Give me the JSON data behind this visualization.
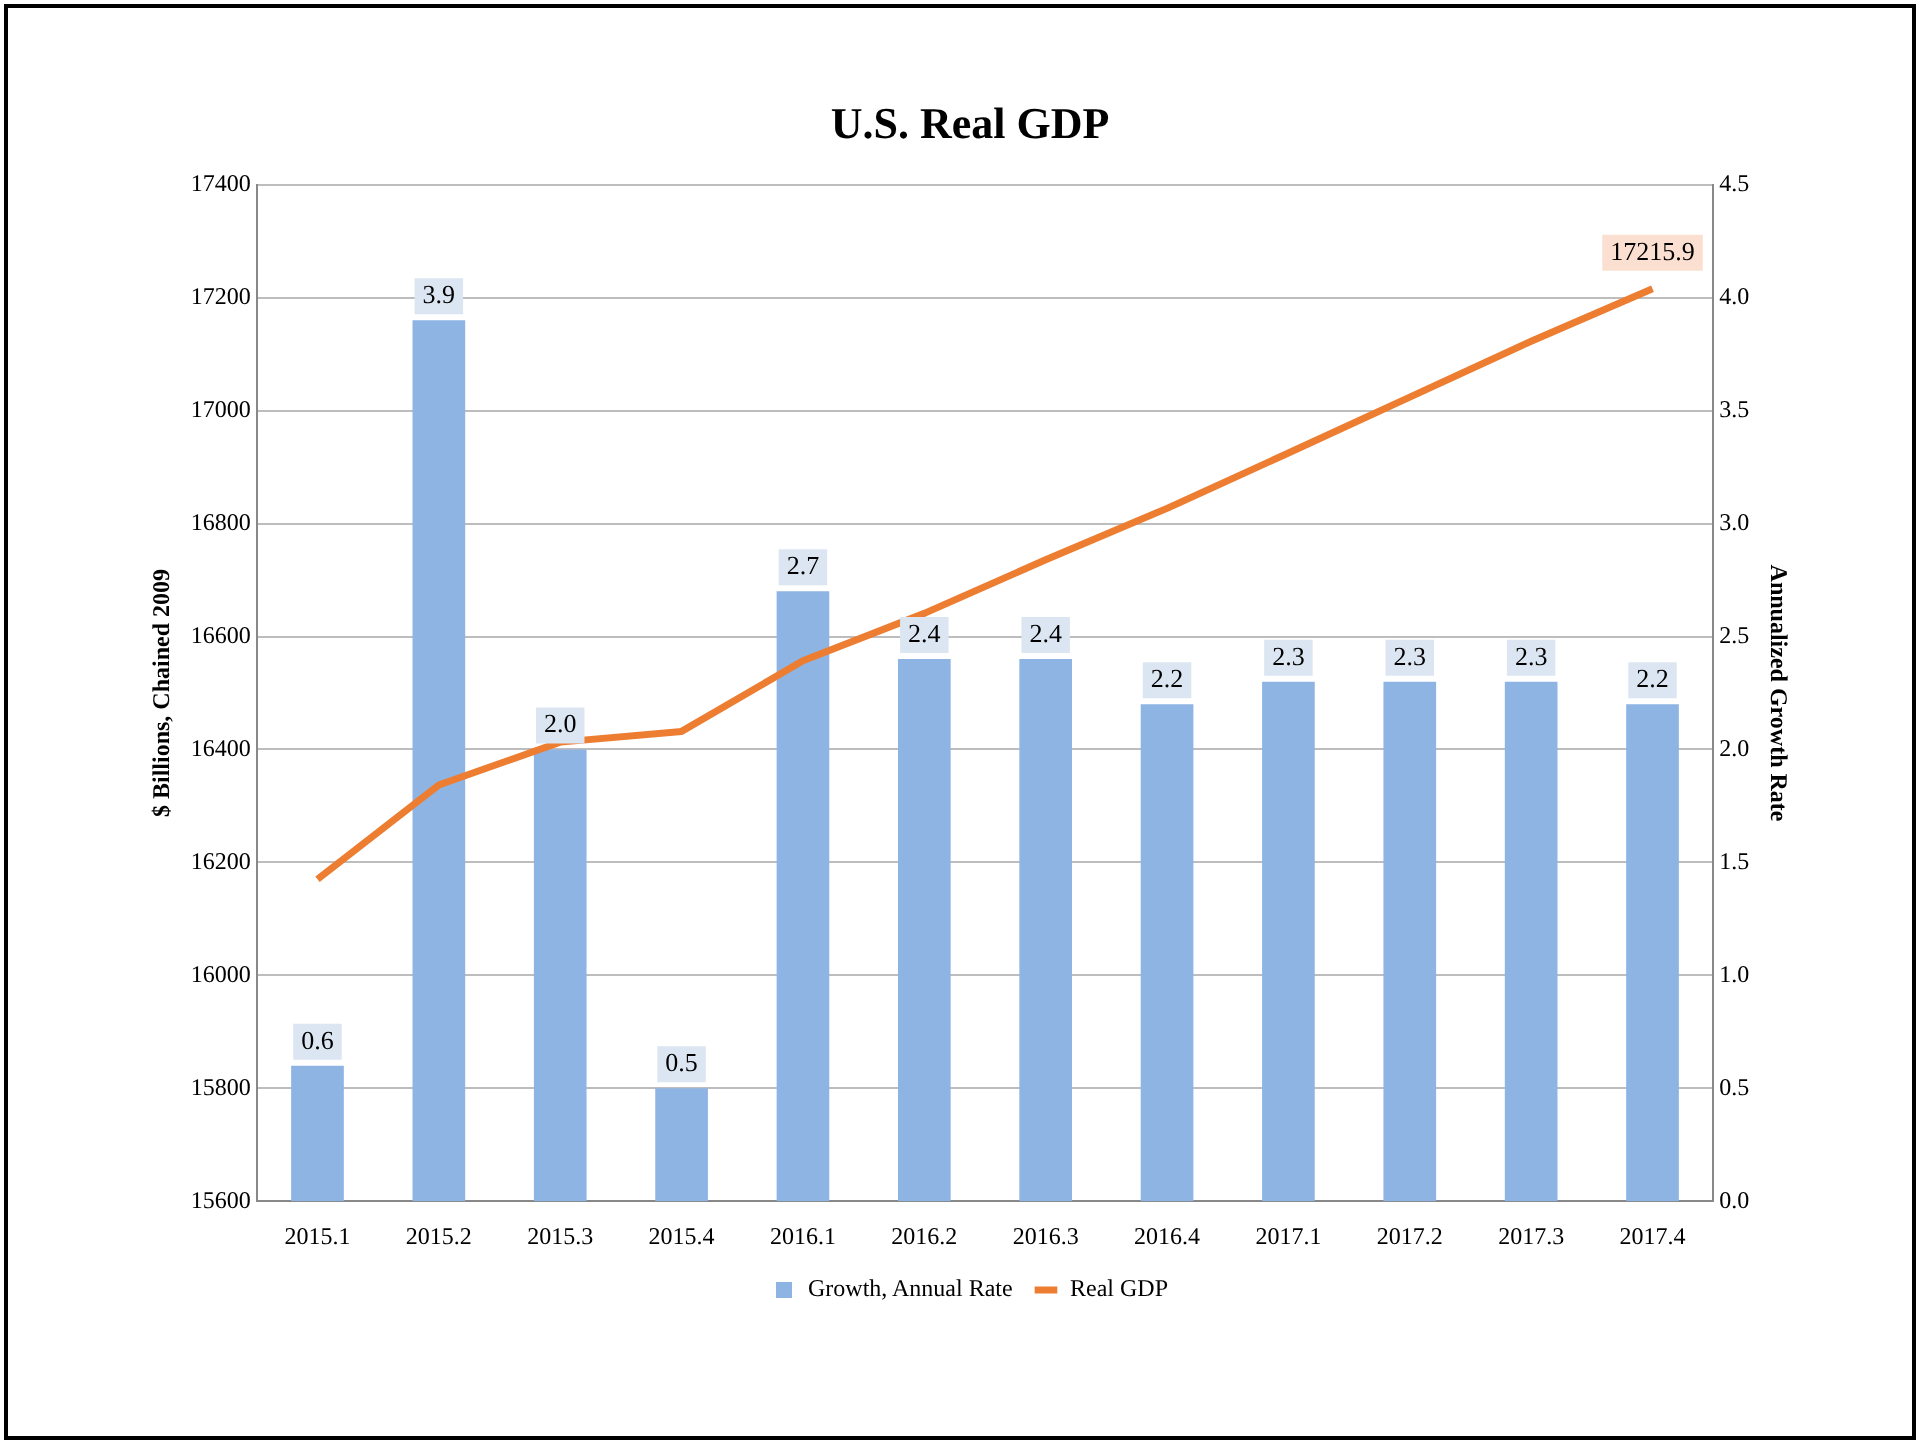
{
  "chart_data": {
    "type": "bar",
    "title": "U.S. Real GDP",
    "ylabel": "$ Billions, Chained 2009",
    "y2label": "Annualized Growth Rate",
    "categories": [
      "2015.1",
      "2015.2",
      "2015.3",
      "2015.4",
      "2016.1",
      "2016.2",
      "2016.3",
      "2016.4",
      "2017.1",
      "2017.2",
      "2017.3",
      "2017.4"
    ],
    "series": [
      {
        "name": "Growth, Annual Rate",
        "axis": "y2",
        "color": "#8eb4e3",
        "values": [
          0.6,
          3.9,
          2.0,
          0.5,
          2.7,
          2.4,
          2.4,
          2.2,
          2.3,
          2.3,
          2.3,
          2.2
        ],
        "value_labels": [
          "0.6",
          "3.9",
          "2.0",
          "0.5",
          "2.7",
          "2.4",
          "2.4",
          "2.2",
          "2.3",
          "2.3",
          "2.3",
          "2.2"
        ]
      },
      {
        "name": "Real GDP",
        "type": "line",
        "axis": "y",
        "color": "#ed7d31",
        "values": [
          16170,
          16337,
          16413,
          16432,
          16557,
          16641,
          16736,
          16827,
          16925,
          17024,
          17123,
          17215.9
        ],
        "value_labels": [
          null,
          null,
          null,
          null,
          null,
          null,
          null,
          null,
          null,
          null,
          null,
          "17215.9"
        ]
      }
    ],
    "ylim": [
      15600,
      17400
    ],
    "yticks": [
      15600,
      15800,
      16000,
      16200,
      16400,
      16600,
      16800,
      17000,
      17200,
      17400
    ],
    "y2lim": [
      0,
      4.5
    ],
    "y2ticks": [
      {
        "value": 0,
        "label": "0.0"
      },
      {
        "value": 0.5,
        "label": "0.5"
      },
      {
        "value": 1,
        "label": "1.0"
      },
      {
        "value": 1.5,
        "label": "1.5"
      },
      {
        "value": 2,
        "label": "2.0"
      },
      {
        "value": 2.5,
        "label": "2.5"
      },
      {
        "value": 3,
        "label": "3.0"
      },
      {
        "value": 3.5,
        "label": "3.5"
      },
      {
        "value": 4,
        "label": "4.0"
      },
      {
        "value": 4.5,
        "label": "4.5"
      }
    ],
    "grid": "y",
    "legend": "bottom",
    "marker": "none",
    "line_style": "solid"
  }
}
